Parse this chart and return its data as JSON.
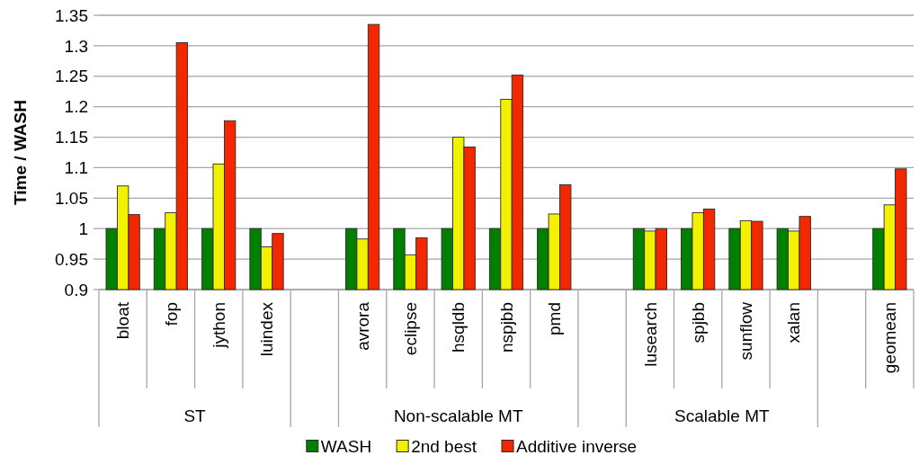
{
  "chart_data": {
    "type": "bar",
    "ylabel": "Time / WASH",
    "categories": [
      "bloat",
      "fop",
      "jython",
      "luindex",
      null,
      "avrora",
      "eclipse",
      "hsqldb",
      "nspjbb",
      "pmd",
      null,
      "lusearch",
      "spjbb",
      "sunflow",
      "xalan",
      null,
      "geomean"
    ],
    "series": [
      {
        "name": "WASH",
        "color": "#008000",
        "values": [
          1,
          1,
          1,
          1,
          null,
          1,
          1,
          1,
          1,
          1,
          null,
          1,
          1,
          1,
          1,
          null,
          1
        ]
      },
      {
        "name": "2nd best",
        "color": "#f2f200",
        "values": [
          1.07,
          1.026,
          1.106,
          0.97,
          null,
          0.983,
          0.957,
          1.15,
          1.212,
          1.024,
          null,
          0.996,
          1.026,
          1.013,
          0.996,
          null,
          1.039
        ]
      },
      {
        "name": "Additive inverse",
        "color": "#f42800",
        "values": [
          1.023,
          1.305,
          1.177,
          0.992,
          null,
          1.335,
          0.985,
          1.134,
          1.252,
          1.072,
          null,
          1,
          1.032,
          1.012,
          1.02,
          null,
          1.098
        ]
      }
    ],
    "ylim": [
      0.9,
      1.35
    ],
    "yticks": [
      0.9,
      0.95,
      1,
      1.05,
      1.1,
      1.15,
      1.2,
      1.25,
      1.3,
      1.35
    ],
    "grid": "y",
    "legend": "bottom",
    "annotations": [
      "ST",
      "Non-scalable MT",
      "Scalable MT"
    ]
  }
}
